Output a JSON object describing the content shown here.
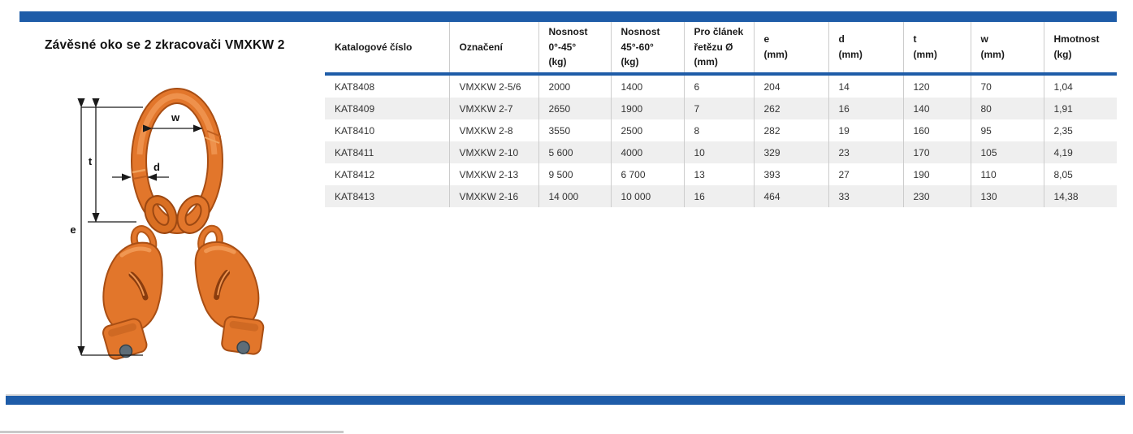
{
  "page": {
    "title": "Závěsné oko se 2 zkracovači VMXKW 2"
  },
  "colors": {
    "accent_blue": "#1e5ca8",
    "row_alt_gray": "#efefef",
    "product_orange": "#e2762b",
    "product_orange_dark": "#a84e14",
    "pin_gray": "#5d6d78"
  },
  "diagram": {
    "labels": {
      "w": "w",
      "t": "t",
      "d": "d",
      "e": "e"
    }
  },
  "table": {
    "columns": [
      "Katalogové číslo",
      "Označení",
      "Nosnost\n0°-45°\n(kg)",
      "Nosnost\n45°-60°\n(kg)",
      "Pro článek\nřetězu Ø\n(mm)",
      "e\n(mm)",
      "d\n(mm)",
      "t\n(mm)",
      "w\n(mm)",
      "Hmotnost\n(kg)"
    ],
    "rows": [
      [
        "KAT8408",
        "VMXKW 2-5/6",
        "2000",
        "1400",
        "6",
        "204",
        "14",
        "120",
        "70",
        "1,04"
      ],
      [
        "KAT8409",
        "VMXKW 2-7",
        "2650",
        "1900",
        "7",
        "262",
        "16",
        "140",
        "80",
        "1,91"
      ],
      [
        "KAT8410",
        "VMXKW 2-8",
        "3550",
        "2500",
        "8",
        "282",
        "19",
        "160",
        "95",
        "2,35"
      ],
      [
        "KAT8411",
        "VMXKW 2-10",
        "5 600",
        "4000",
        "10",
        "329",
        "23",
        "170",
        "105",
        "4,19"
      ],
      [
        "KAT8412",
        "VMXKW 2-13",
        "9 500",
        "6 700",
        "13",
        "393",
        "27",
        "190",
        "110",
        "8,05"
      ],
      [
        "KAT8413",
        "VMXKW 2-16",
        "14 000",
        "10 000",
        "16",
        "464",
        "33",
        "230",
        "130",
        "14,38"
      ]
    ]
  }
}
